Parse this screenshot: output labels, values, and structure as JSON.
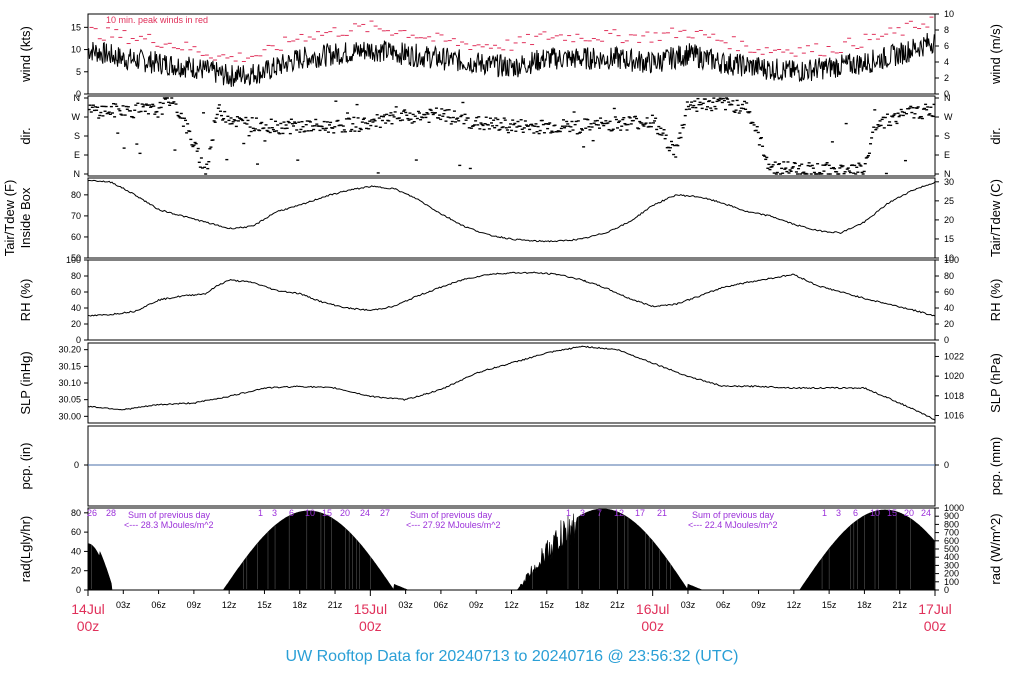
{
  "title": "UW Rooftop Data for 20240713  to  20240716 @ 23:56:32  (UTC)",
  "colors": {
    "peak": "#e0305a",
    "date": "#e0305a",
    "annotation": "#9b30d9",
    "precip_line": "#4a6fa8",
    "title": "#2a9fd6"
  },
  "chart_data": [
    {
      "type": "line",
      "id": "wind",
      "ylabel_left": "wind (kts)",
      "ylabel_right": "wind (m/s)",
      "ylim": [
        0,
        18
      ],
      "yticks": [
        0,
        5,
        10,
        15
      ],
      "right_ylim": [
        0,
        10
      ],
      "right_yticks": [
        0,
        2,
        4,
        6,
        8,
        10
      ],
      "annotation": "10 min. peak winds in red",
      "series": [
        {
          "x": [
            0,
            3,
            6,
            9,
            12,
            15,
            18,
            21,
            24,
            27,
            30,
            33,
            36,
            39,
            42,
            45,
            48,
            51,
            54,
            57,
            60,
            63,
            66,
            69,
            72
          ],
          "values": [
            10,
            8,
            7,
            6,
            4,
            5,
            8,
            9,
            10,
            9,
            8,
            7,
            6,
            8,
            8,
            8,
            7,
            9,
            7,
            6,
            5,
            6,
            7,
            9,
            12
          ]
        },
        {
          "x": [
            0,
            3,
            6,
            9,
            12,
            15,
            18,
            21,
            24,
            27,
            30,
            33,
            36,
            39,
            42,
            45,
            48,
            51,
            54,
            57,
            60,
            63,
            66,
            69,
            72
          ],
          "values": [
            14,
            13,
            12,
            10,
            8,
            9,
            13,
            14,
            15,
            14,
            12,
            11,
            11,
            13,
            13,
            13,
            13,
            14,
            12,
            10,
            10,
            10,
            12,
            14,
            17
          ]
        }
      ]
    },
    {
      "type": "scatter",
      "id": "dir",
      "ylabel_left": "dir.",
      "ylabel_right": "dir.",
      "ytick_labels": [
        "N",
        "E",
        "S",
        "W",
        "N"
      ]
    },
    {
      "type": "line",
      "id": "temp",
      "ylabel_left": "Tair/Tdew (F)",
      "ylabel_left2": "Inside Box",
      "ylabel_right": "Tair/Tdew (C)",
      "ylim": [
        50,
        88
      ],
      "yticks": [
        50,
        60,
        70,
        80
      ],
      "right_ylim": [
        10,
        31
      ],
      "right_yticks": [
        10,
        15,
        20,
        25,
        30
      ],
      "x": [
        0,
        2,
        4,
        6,
        8,
        10,
        12,
        14,
        16,
        18,
        20,
        22,
        24,
        26,
        28,
        30,
        32,
        34,
        36,
        38,
        40,
        42,
        44,
        46,
        48,
        50,
        52,
        54,
        56,
        58,
        60,
        62,
        64,
        66,
        68,
        70,
        72
      ],
      "values": [
        87,
        86,
        80,
        73,
        70,
        67,
        64,
        65,
        72,
        75,
        79,
        82,
        84,
        83,
        78,
        71,
        65,
        61,
        59,
        58,
        58,
        59,
        62,
        67,
        75,
        80,
        79,
        76,
        72,
        70,
        66,
        63,
        62,
        67,
        76,
        82,
        86
      ]
    },
    {
      "type": "line",
      "id": "rh",
      "ylabel_left": "RH (%)",
      "ylabel_right": "RH (%)",
      "ylim": [
        0,
        100
      ],
      "yticks": [
        0,
        20,
        40,
        60,
        80,
        100
      ],
      "x": [
        0,
        2,
        4,
        6,
        8,
        10,
        11,
        12,
        14,
        16,
        18,
        20,
        22,
        24,
        26,
        28,
        30,
        32,
        34,
        36,
        38,
        40,
        42,
        44,
        46,
        48,
        50,
        52,
        54,
        56,
        58,
        60,
        62,
        64,
        66,
        68,
        70,
        72
      ],
      "values": [
        30,
        32,
        36,
        50,
        55,
        58,
        68,
        75,
        72,
        62,
        58,
        47,
        40,
        37,
        42,
        55,
        66,
        76,
        82,
        84,
        84,
        82,
        75,
        65,
        52,
        42,
        45,
        55,
        66,
        72,
        77,
        82,
        68,
        60,
        52,
        45,
        38,
        30
      ]
    },
    {
      "type": "line",
      "id": "slp",
      "ylabel_left": "SLP (inHg)",
      "ylabel_right": "SLP (hPa)",
      "ylim": [
        29.98,
        30.22
      ],
      "yticks": [
        30.0,
        30.05,
        30.1,
        30.15,
        30.2
      ],
      "right_yticks": [
        1016,
        1018,
        1020,
        1022
      ],
      "x": [
        0,
        3,
        6,
        9,
        12,
        15,
        18,
        21,
        24,
        27,
        30,
        33,
        36,
        39,
        42,
        45,
        48,
        51,
        54,
        57,
        60,
        63,
        66,
        69,
        72
      ],
      "values": [
        30.03,
        30.02,
        30.035,
        30.04,
        30.06,
        30.085,
        30.09,
        30.085,
        30.06,
        30.05,
        30.08,
        30.13,
        30.16,
        30.19,
        30.21,
        30.2,
        30.16,
        30.12,
        30.09,
        30.09,
        30.085,
        30.085,
        30.085,
        30.04,
        29.99
      ]
    },
    {
      "type": "line",
      "id": "pcp",
      "ylabel_left": "pcp. (in)",
      "ylabel_right": "pcp. (mm)",
      "yticks": [
        0
      ],
      "right_yticks": [
        0
      ],
      "x": [
        0,
        72
      ],
      "values": [
        0,
        0
      ]
    },
    {
      "type": "area",
      "id": "rad",
      "ylabel_left": "rad(Lgly/hr)",
      "ylabel_right": "rad (W/m^2)",
      "ylim": [
        0,
        85
      ],
      "yticks": [
        0,
        20,
        40,
        60,
        80
      ],
      "right_ylim": [
        0,
        1000
      ],
      "right_yticks": [
        0,
        100,
        200,
        300,
        400,
        500,
        600,
        700,
        800,
        900,
        1000
      ],
      "daily_totals": [
        {
          "line1": "Sum of previous day",
          "line2": "<--- 28.3 MJoules/m^2"
        },
        {
          "line1": "Sum of previous day",
          "line2": "<--- 27.92 MJoules/m^2"
        },
        {
          "line1": "Sum of previous day",
          "line2": "<--- 22.4 MJoules/m^2"
        }
      ],
      "day_numbers": [
        [
          "26",
          "28"
        ],
        [
          "1",
          "3",
          "6",
          "10",
          "15",
          "20",
          "24",
          "27"
        ],
        [
          "1",
          "3",
          "7",
          "12",
          "17",
          "21"
        ],
        [
          "1",
          "3",
          "6",
          "10",
          "15",
          "20",
          "24"
        ]
      ]
    }
  ],
  "xaxis": {
    "hour_labels": [
      "03z",
      "06z",
      "09z",
      "12z",
      "15z",
      "18z",
      "21z",
      "03z",
      "06z",
      "09z",
      "12z",
      "15z",
      "18z",
      "21z",
      "03z",
      "06z",
      "09z",
      "12z",
      "15z",
      "18z",
      "21z"
    ],
    "date_labels": [
      {
        "date": "14Jul",
        "time": "00z"
      },
      {
        "date": "15Jul",
        "time": "00z"
      },
      {
        "date": "16Jul",
        "time": "00z"
      },
      {
        "date": "17Jul",
        "time": "00z"
      }
    ]
  }
}
